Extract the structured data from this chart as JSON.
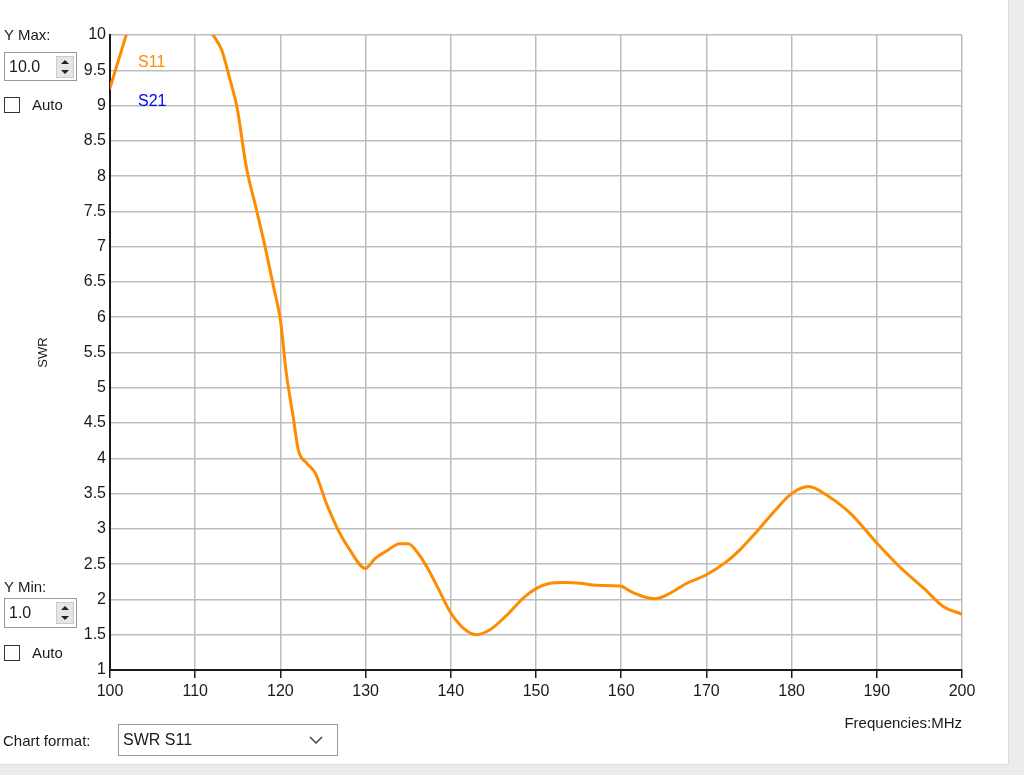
{
  "chart_data": {
    "type": "line",
    "xlabel": "Frequencies:MHz",
    "ylabel": "SWR",
    "series": [
      {
        "name": "S11",
        "color": "#ff8c00",
        "x": [
          100,
          101.9,
          107,
          112.1,
          113.1,
          114.1,
          114.9,
          116.0,
          117.2,
          118.2,
          119.2,
          120.0,
          120.7,
          121.5,
          122.1,
          123.1,
          124.1,
          125.4,
          126.8,
          128.0,
          130.0,
          131.1,
          132.5,
          134.0,
          135.0,
          136.0,
          137.2,
          138.5,
          139.9,
          141.5,
          143.0,
          144.6,
          146.6,
          148.5,
          150.1,
          151.3,
          153.2,
          155.2,
          157.1,
          159.9,
          161.0,
          162.6,
          164.0,
          165.3,
          167.7,
          170.0,
          172.4,
          173.9,
          175.9,
          177.9,
          180.0,
          182.0,
          184.1,
          186.9,
          190.0,
          192.7,
          195.5,
          197.8,
          200
        ],
        "values": [
          9.25,
          10,
          null,
          10,
          9.79,
          9.36,
          8.98,
          8.13,
          7.52,
          7.0,
          6.43,
          5.96,
          5.2,
          4.59,
          4.12,
          3.93,
          3.79,
          3.36,
          2.98,
          2.73,
          2.44,
          2.58,
          2.69,
          2.79,
          2.79,
          2.68,
          2.46,
          2.16,
          1.83,
          1.59,
          1.5,
          1.57,
          1.78,
          2.02,
          2.16,
          2.22,
          2.24,
          2.23,
          2.2,
          2.19,
          2.12,
          2.04,
          2.01,
          2.06,
          2.23,
          2.35,
          2.54,
          2.7,
          2.96,
          3.24,
          3.5,
          3.6,
          3.48,
          3.22,
          2.8,
          2.46,
          2.16,
          1.9,
          1.79
        ]
      },
      {
        "name": "S21",
        "color": "#0000ff"
      }
    ],
    "xlim": [
      100,
      200
    ],
    "xticks": [
      100,
      110,
      120,
      130,
      140,
      150,
      160,
      170,
      180,
      190,
      200
    ],
    "ylim": [
      1,
      10
    ],
    "yticks": [
      1,
      1.5,
      2,
      2.5,
      3,
      3.5,
      4,
      4.5,
      5,
      5.5,
      6,
      6.5,
      7,
      7.5,
      8,
      8.5,
      9,
      9.5,
      10
    ],
    "grid": true,
    "legend": "top left",
    "marker": "none",
    "line_style": "solid",
    "annotations": [
      "Y Max:",
      "10.0",
      "Auto",
      "Y Min:",
      "1.0",
      "Auto",
      "Chart format:",
      "SWR S11"
    ]
  }
}
